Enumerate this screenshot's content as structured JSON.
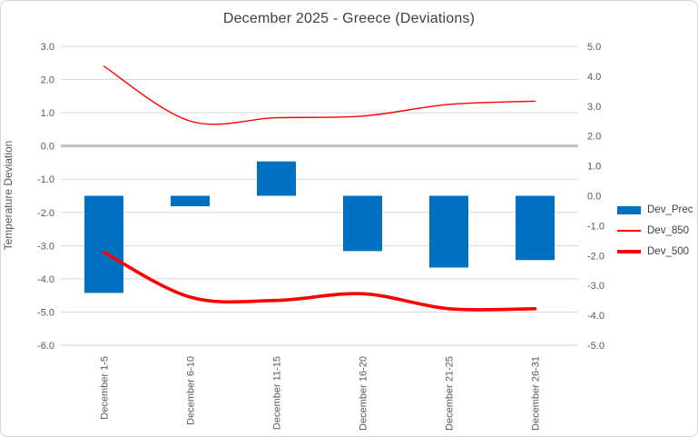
{
  "chart_data": {
    "type": "combo",
    "title": "December 2025 - Greece (Deviations)",
    "categories": [
      "December 1-5",
      "December 6-10",
      "December 11-15",
      "December 16-20",
      "December 21-25",
      "December 26-31"
    ],
    "series": [
      {
        "name": "Dev_Prec",
        "type": "bar",
        "axis": "right",
        "color": "#0070C0",
        "values": [
          -3.25,
          -0.35,
          1.15,
          -1.85,
          -2.4,
          -2.15
        ]
      },
      {
        "name": "Dev_850",
        "type": "line",
        "axis": "left",
        "color": "#FF0000",
        "stroke_width": 1.4,
        "values": [
          2.4,
          0.75,
          0.85,
          0.9,
          1.25,
          1.35
        ]
      },
      {
        "name": "Dev_500",
        "type": "line",
        "axis": "left",
        "color": "#FF0000",
        "stroke_width": 3.6,
        "values": [
          -3.2,
          -4.55,
          -4.65,
          -4.45,
          -4.9,
          -4.9
        ]
      }
    ],
    "left_axis": {
      "label": "Temperature Deviation",
      "min": -6,
      "max": 3,
      "step": 1,
      "ticks": [
        "3.0",
        "2.0",
        "1.0",
        "0.0",
        "-1.0",
        "-2.0",
        "-3.0",
        "-4.0",
        "-5.0",
        "-6.0"
      ]
    },
    "right_axis": {
      "label": "",
      "min": -5,
      "max": 5,
      "step": 1,
      "ticks": [
        "5.0",
        "4.0",
        "3.0",
        "2.0",
        "1.0",
        "0.0",
        "-1.0",
        "-2.0",
        "-3.0",
        "-4.0",
        "-5.0"
      ]
    },
    "legend_position": "right",
    "grid": true,
    "smoothed_lines": true,
    "colors": {
      "gridline": "#D9D9D9",
      "zero_line": "#BFBFBF",
      "tick_text": "#595959",
      "title_text": "#404040"
    }
  }
}
